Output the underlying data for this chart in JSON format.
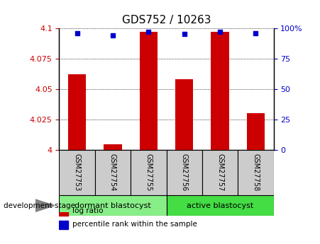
{
  "title": "GDS752 / 10263",
  "samples": [
    "GSM27753",
    "GSM27754",
    "GSM27755",
    "GSM27756",
    "GSM27757",
    "GSM27758"
  ],
  "log_ratio": [
    4.062,
    4.005,
    4.097,
    4.058,
    4.097,
    4.03
  ],
  "percentile": [
    96,
    94,
    97,
    95,
    97,
    96
  ],
  "ylim_left": [
    4.0,
    4.1
  ],
  "ylim_right": [
    0,
    100
  ],
  "yticks_left": [
    4.0,
    4.025,
    4.05,
    4.075,
    4.1
  ],
  "yticks_right": [
    0,
    25,
    50,
    75,
    100
  ],
  "ytick_labels_left": [
    "4",
    "4.025",
    "4.05",
    "4.075",
    "4.1"
  ],
  "ytick_labels_right": [
    "0",
    "25",
    "50",
    "75",
    "100%"
  ],
  "bar_color": "#cc0000",
  "dot_color": "#0000cc",
  "groups": [
    {
      "label": "dormant blastocyst",
      "indices": [
        0,
        1,
        2
      ],
      "color": "#88ee88"
    },
    {
      "label": "active blastocyst",
      "indices": [
        3,
        4,
        5
      ],
      "color": "#44dd44"
    }
  ],
  "sample_box_color": "#cccccc",
  "group_label": "development stage",
  "legend_items": [
    {
      "label": "log ratio",
      "color": "#cc0000"
    },
    {
      "label": "percentile rank within the sample",
      "color": "#0000cc"
    }
  ],
  "background_color": "#ffffff",
  "plot_bg_color": "#ffffff",
  "grid_color": "#000000",
  "bar_width": 0.5,
  "title_fontsize": 11,
  "tick_fontsize": 8,
  "label_fontsize": 7.5
}
